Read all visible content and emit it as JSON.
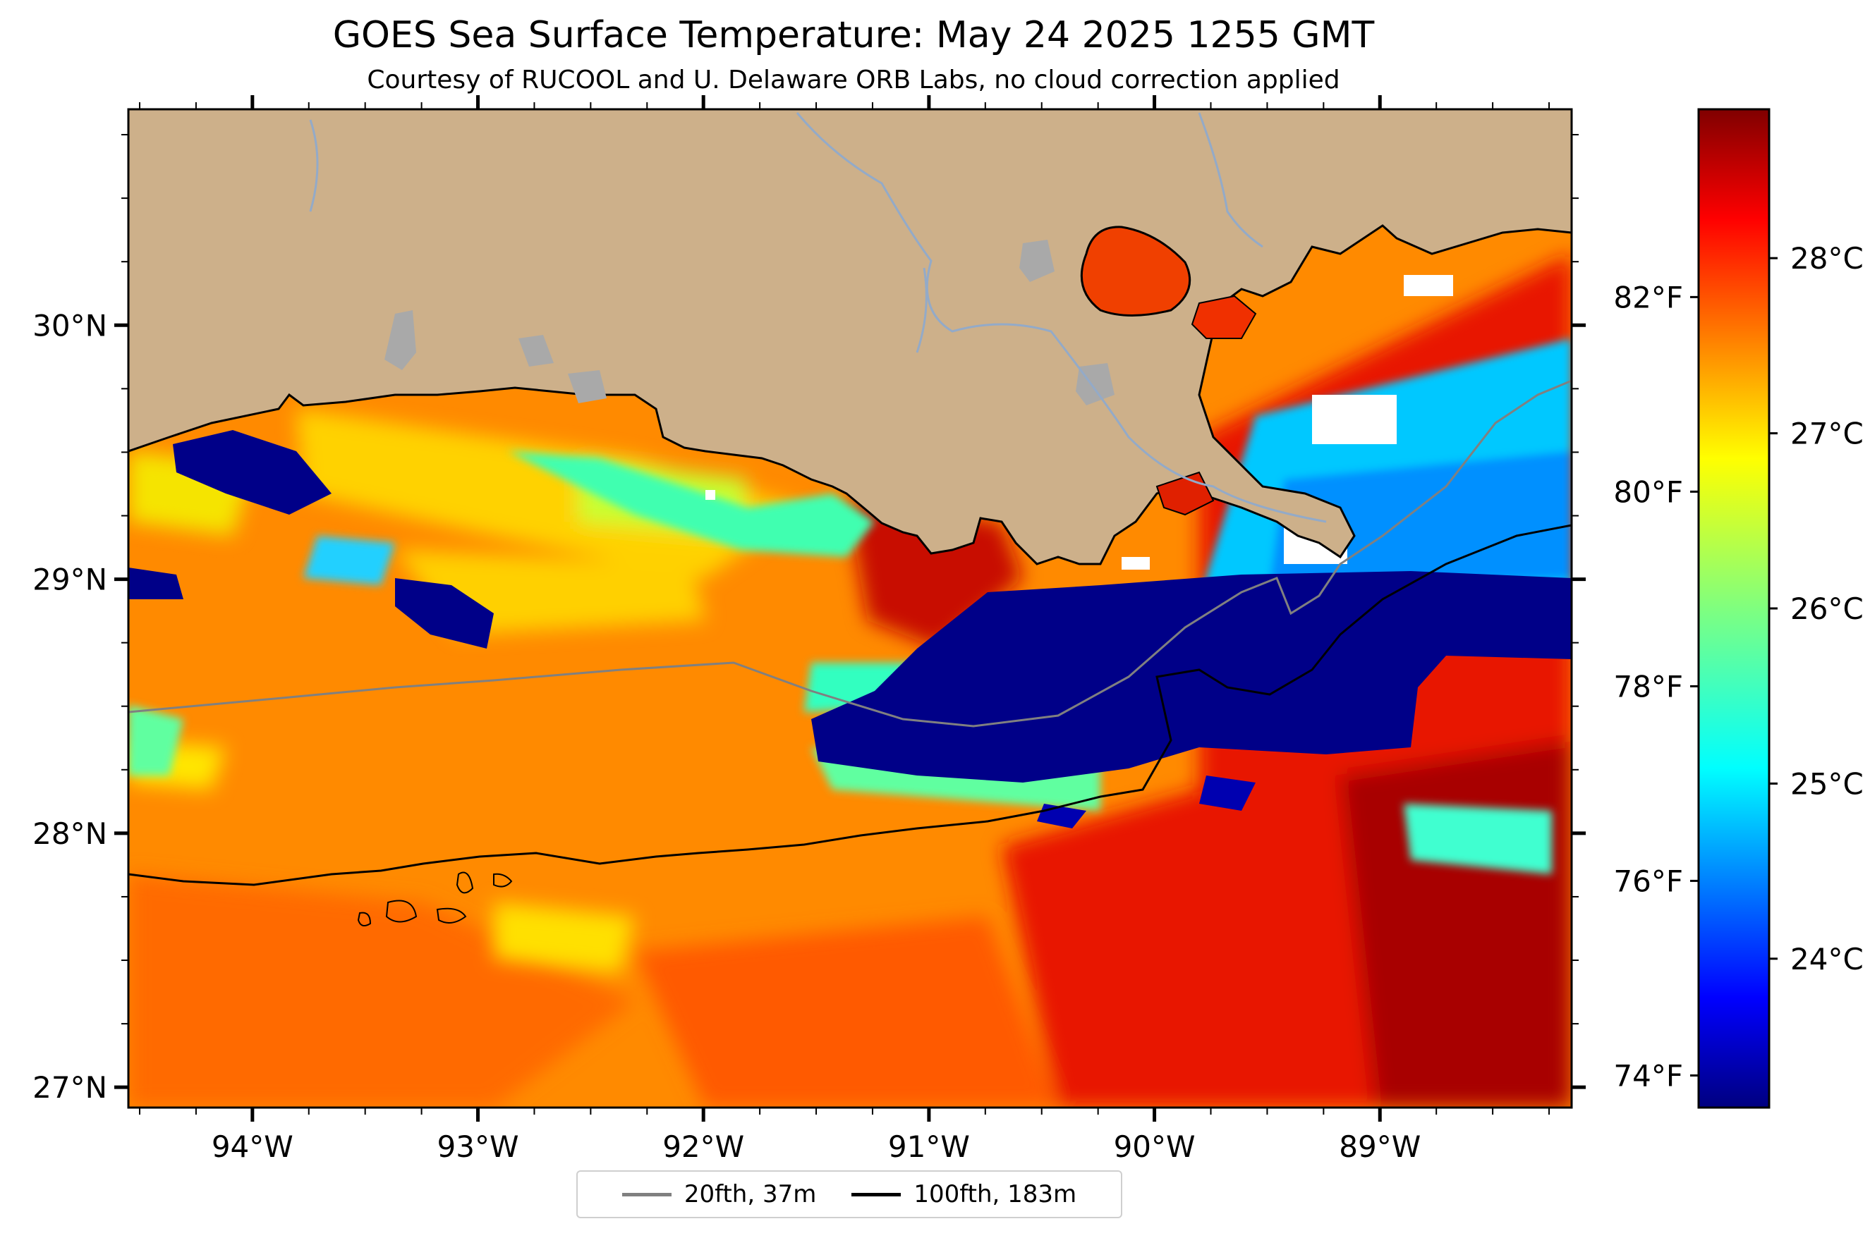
{
  "map": {
    "title": "GOES Sea Surface Temperature: May 24 2025 1255 GMT",
    "subtitle": "Courtesy of RUCOOL and U. Delaware ORB Labs, no cloud correction applied",
    "extent": {
      "lon": [
        -94.55,
        -88.15
      ],
      "lat": [
        26.92,
        30.85
      ]
    },
    "lon_ticks": [
      {
        "value": -94,
        "label": "94°W"
      },
      {
        "value": -93,
        "label": "93°W"
      },
      {
        "value": -92,
        "label": "92°W"
      },
      {
        "value": -91,
        "label": "91°W"
      },
      {
        "value": -90,
        "label": "90°W"
      },
      {
        "value": -89,
        "label": "89°W"
      }
    ],
    "lat_ticks": [
      {
        "value": 30,
        "label": "30°N"
      },
      {
        "value": 29,
        "label": "29°N"
      },
      {
        "value": 28,
        "label": "28°N"
      },
      {
        "value": 27,
        "label": "27°N"
      }
    ],
    "land_color": "#cdb08a",
    "lake_color": "#a9a9a9",
    "river_color": "#93aac8",
    "no_data_color": "#ffffff",
    "layers": [
      "sea surface temperature",
      "coastline",
      "rivers",
      "lakes",
      "isobaths"
    ]
  },
  "colorbar": {
    "colormap": "jet",
    "range_c": [
      23.15,
      28.85
    ],
    "celsius_ticks": [
      {
        "value": 24,
        "label": "24°C"
      },
      {
        "value": 25,
        "label": "25°C"
      },
      {
        "value": 26,
        "label": "26°C"
      },
      {
        "value": 27,
        "label": "27°C"
      },
      {
        "value": 28,
        "label": "28°C"
      }
    ],
    "fahrenheit_ticks": [
      {
        "value": 74,
        "label": "74°F"
      },
      {
        "value": 76,
        "label": "76°F"
      },
      {
        "value": 78,
        "label": "78°F"
      },
      {
        "value": 80,
        "label": "80°F"
      },
      {
        "value": 82,
        "label": "82°F"
      }
    ]
  },
  "legend": {
    "items": [
      {
        "label": "20fth, 37m",
        "color": "#808080"
      },
      {
        "label": "100fth, 183m",
        "color": "#000000"
      }
    ]
  }
}
